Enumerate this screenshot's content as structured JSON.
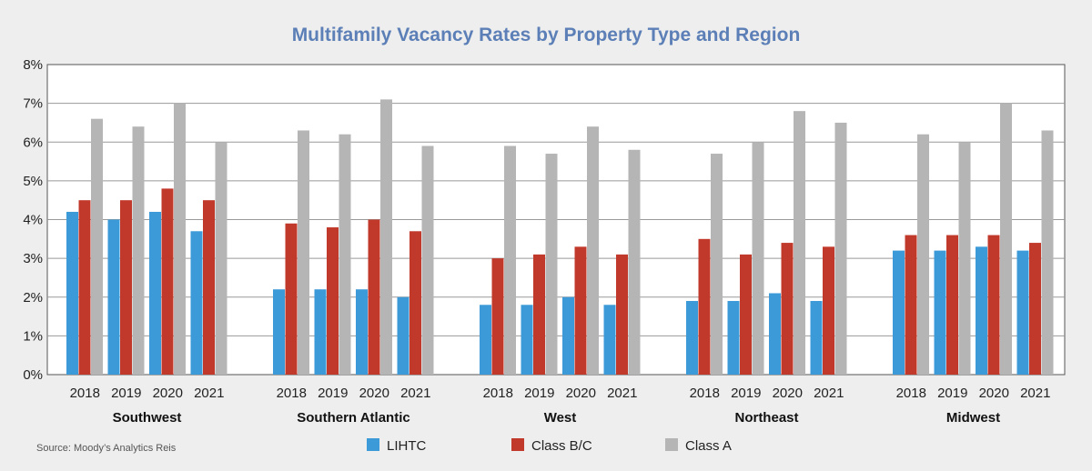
{
  "chart_data": {
    "type": "bar",
    "title": "Multifamily Vacancy Rates by Property Type and Region",
    "source": "Source: Moody’s Analytics Reis",
    "ylim": [
      0,
      8
    ],
    "yticks": [
      "0%",
      "1%",
      "2%",
      "3%",
      "4%",
      "5%",
      "6%",
      "7%",
      "8%"
    ],
    "grid": true,
    "legend_position": "bottom",
    "years": [
      "2018",
      "2019",
      "2020",
      "2021"
    ],
    "colors": {
      "LIHTC": "#3d9ad8",
      "Class B/C": "#c0392b",
      "Class A": "#b5b5b5"
    },
    "series_names": [
      "LIHTC",
      "Class B/C",
      "Class A"
    ],
    "regions": [
      {
        "name": "Southwest",
        "LIHTC": [
          4.2,
          4.0,
          4.2,
          3.7
        ],
        "Class B/C": [
          4.5,
          4.5,
          4.8,
          4.5
        ],
        "Class A": [
          6.6,
          6.4,
          7.0,
          6.0
        ]
      },
      {
        "name": "Southern Atlantic",
        "LIHTC": [
          2.2,
          2.2,
          2.2,
          2.0
        ],
        "Class B/C": [
          3.9,
          3.8,
          4.0,
          3.7
        ],
        "Class A": [
          6.3,
          6.2,
          7.1,
          5.9
        ]
      },
      {
        "name": "West",
        "LIHTC": [
          1.8,
          1.8,
          2.0,
          1.8
        ],
        "Class B/C": [
          3.0,
          3.1,
          3.3,
          3.1
        ],
        "Class A": [
          5.9,
          5.7,
          6.4,
          5.8
        ]
      },
      {
        "name": "Northeast",
        "LIHTC": [
          1.9,
          1.9,
          2.1,
          1.9
        ],
        "Class B/C": [
          3.5,
          3.1,
          3.4,
          3.3
        ],
        "Class A": [
          5.7,
          6.0,
          6.8,
          6.5
        ]
      },
      {
        "name": "Midwest",
        "LIHTC": [
          3.2,
          3.2,
          3.3,
          3.2
        ],
        "Class B/C": [
          3.6,
          3.6,
          3.6,
          3.4
        ],
        "Class A": [
          6.2,
          6.0,
          7.0,
          6.3
        ]
      }
    ]
  }
}
